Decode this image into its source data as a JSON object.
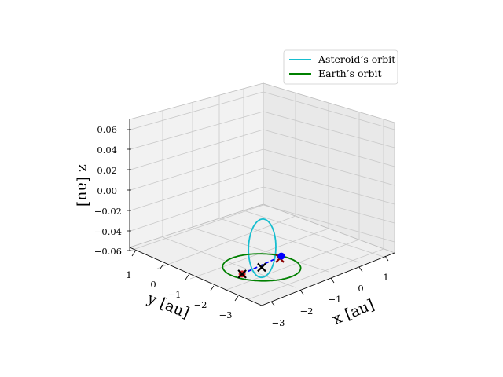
{
  "chart_data": {
    "type": "line",
    "projection": "3d",
    "xlabel": "x [au]",
    "ylabel": "y [au]",
    "zlabel": "z [au]",
    "xlim": [
      -3.3,
      1.5
    ],
    "ylim": [
      -3.3,
      1.5
    ],
    "zlim": [
      -0.06,
      0.07
    ],
    "xticks": [
      "−3",
      "−2",
      "−1",
      "0",
      "1"
    ],
    "yticks": [
      "1",
      "0",
      "−1",
      "−2",
      "−3"
    ],
    "zticks": [
      "0.06",
      "0.04",
      "0.02",
      "0.00",
      "−0.02",
      "−0.04",
      "−0.06"
    ],
    "grid": true,
    "legend_position": "top-right",
    "series": [
      {
        "name": "Asteroid’s orbit",
        "color": "#17becf",
        "shape": "ellipse",
        "center": [
          -1.0,
          -1.0,
          0.0
        ],
        "semi_axes": [
          2.3,
          0.35
        ],
        "z_amplitude": 0.062
      },
      {
        "name": "Earth’s orbit",
        "color": "#008000",
        "shape": "circle",
        "center": [
          0.0,
          0.0,
          0.0
        ],
        "radius": 1.0
      }
    ],
    "markers": [
      {
        "label": "red-dot-upper",
        "color": "#d62728",
        "shape": "circle",
        "pos": [
          0.05,
          0.75,
          0.02
        ]
      },
      {
        "label": "cross-upper",
        "color": "#000000",
        "shape": "x",
        "pos": [
          0.05,
          0.75,
          0.02
        ]
      },
      {
        "label": "cross-center",
        "color": "#000000",
        "shape": "x",
        "pos": [
          0.0,
          0.0,
          0.0
        ]
      },
      {
        "label": "cross-lower",
        "color": "#8b0000",
        "shape": "x",
        "pos": [
          -0.2,
          -0.85,
          -0.02
        ]
      },
      {
        "label": "blue-dot",
        "color": "#0000ff",
        "shape": "circle",
        "pos": [
          -0.3,
          -1.0,
          -0.024
        ]
      }
    ],
    "connector": {
      "color": "#0000ff",
      "style": "dashed",
      "from": [
        0.05,
        0.75,
        0.02
      ],
      "to": [
        -0.3,
        -1.0,
        -0.024
      ]
    }
  }
}
